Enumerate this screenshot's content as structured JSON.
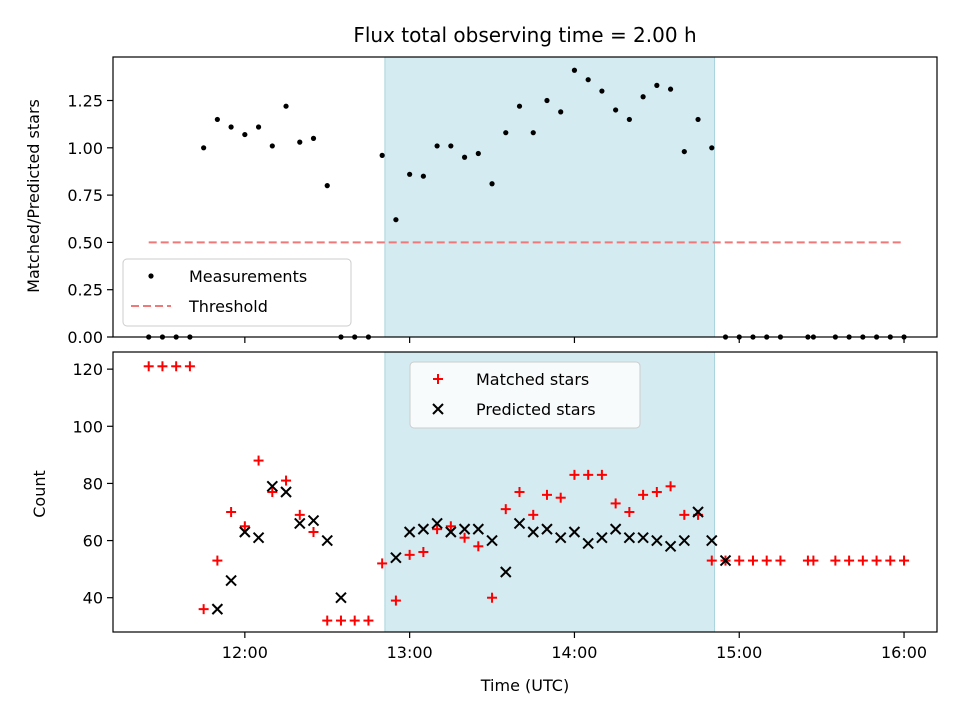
{
  "chart_data": [
    {
      "type": "scatter",
      "title": "Flux total observing time = 2.00 h",
      "xlabel": "",
      "ylabel": "Matched/Predicted stars",
      "xlim": [
        "11:12",
        "16:12"
      ],
      "ylim": [
        0,
        1.48
      ],
      "yticks": [
        0,
        0.25,
        0.5,
        0.75,
        1.0,
        1.25
      ],
      "ytick_labels": [
        "0.00",
        "0.25",
        "0.50",
        "0.75",
        "1.00",
        "1.25"
      ],
      "xtick_labels": [
        "12:00",
        "13:00",
        "14:00",
        "15:00",
        "16:00"
      ],
      "shaded_span": [
        "12:51",
        "14:51"
      ],
      "legend_position": "lower-left",
      "series": [
        {
          "name": "Measurements",
          "marker": "dot",
          "color": "#000000",
          "x": [
            "11:25",
            "11:30",
            "11:35",
            "11:40",
            "11:45",
            "11:50",
            "11:55",
            "12:00",
            "12:05",
            "12:10",
            "12:15",
            "12:20",
            "12:25",
            "12:30",
            "12:35",
            "12:40",
            "12:45",
            "12:50",
            "12:55",
            "13:00",
            "13:05",
            "13:10",
            "13:15",
            "13:20",
            "13:25",
            "13:30",
            "13:35",
            "13:40",
            "13:45",
            "13:50",
            "13:55",
            "14:00",
            "14:05",
            "14:10",
            "14:15",
            "14:20",
            "14:25",
            "14:30",
            "14:35",
            "14:40",
            "14:45",
            "14:50",
            "14:55",
            "15:00",
            "15:05",
            "15:10",
            "15:15",
            "15:25",
            "15:27",
            "15:35",
            "15:40",
            "15:45",
            "15:50",
            "15:55",
            "16:00"
          ],
          "y": [
            0,
            0,
            0,
            0,
            1.0,
            1.15,
            1.11,
            1.07,
            1.11,
            1.01,
            1.22,
            1.03,
            1.05,
            0.8,
            0,
            0,
            0,
            0.96,
            0.62,
            0.86,
            0.85,
            1.01,
            1.01,
            0.95,
            0.97,
            0.81,
            1.08,
            1.22,
            1.08,
            1.25,
            1.19,
            1.41,
            1.36,
            1.3,
            1.2,
            1.15,
            1.27,
            1.33,
            1.31,
            0.98,
            1.15,
            1.0,
            0,
            0,
            0,
            0,
            0,
            0,
            0,
            0,
            0,
            0,
            0,
            0,
            0
          ]
        },
        {
          "name": "Threshold",
          "marker": "dashed-line",
          "color": "#f07878",
          "x": [
            "11:25",
            "16:00"
          ],
          "y": [
            0.5,
            0.5
          ]
        }
      ]
    },
    {
      "type": "scatter",
      "title": "",
      "xlabel": "Time (UTC)",
      "ylabel": "Count",
      "xlim": [
        "11:12",
        "16:12"
      ],
      "ylim": [
        28,
        126
      ],
      "yticks": [
        40,
        60,
        80,
        100,
        120
      ],
      "ytick_labels": [
        "40",
        "60",
        "80",
        "100",
        "120"
      ],
      "xtick_labels": [
        "12:00",
        "13:00",
        "14:00",
        "15:00",
        "16:00"
      ],
      "shaded_span": [
        "12:51",
        "14:51"
      ],
      "legend_position": "upper-center",
      "series": [
        {
          "name": "Matched stars",
          "marker": "plus",
          "color": "#ff0000",
          "x": [
            "11:25",
            "11:30",
            "11:35",
            "11:40",
            "11:45",
            "11:50",
            "11:55",
            "12:00",
            "12:05",
            "12:10",
            "12:15",
            "12:20",
            "12:25",
            "12:30",
            "12:35",
            "12:40",
            "12:45",
            "12:50",
            "12:55",
            "13:00",
            "13:05",
            "13:10",
            "13:15",
            "13:20",
            "13:25",
            "13:30",
            "13:35",
            "13:40",
            "13:45",
            "13:50",
            "13:55",
            "14:00",
            "14:05",
            "14:10",
            "14:15",
            "14:20",
            "14:25",
            "14:30",
            "14:35",
            "14:40",
            "14:45",
            "14:50",
            "14:55",
            "15:00",
            "15:05",
            "15:10",
            "15:15",
            "15:25",
            "15:27",
            "15:35",
            "15:40",
            "15:45",
            "15:50",
            "15:55",
            "16:00"
          ],
          "y": [
            121,
            121,
            121,
            121,
            36,
            53,
            70,
            65,
            88,
            77,
            81,
            69,
            63,
            32,
            32,
            32,
            32,
            52,
            39,
            55,
            56,
            64,
            65,
            61,
            58,
            40,
            71,
            77,
            69,
            76,
            75,
            83,
            83,
            83,
            73,
            70,
            76,
            77,
            79,
            69,
            69,
            53,
            53,
            53,
            53,
            53,
            53,
            53,
            53,
            53,
            53,
            53,
            53,
            53,
            53
          ]
        },
        {
          "name": "Predicted stars",
          "marker": "x",
          "color": "#000000",
          "x": [
            "11:50",
            "11:55",
            "12:00",
            "12:05",
            "12:10",
            "12:15",
            "12:20",
            "12:25",
            "12:30",
            "12:35",
            "12:55",
            "13:00",
            "13:05",
            "13:10",
            "13:15",
            "13:20",
            "13:25",
            "13:30",
            "13:35",
            "13:40",
            "13:45",
            "13:50",
            "13:55",
            "14:00",
            "14:05",
            "14:10",
            "14:15",
            "14:20",
            "14:25",
            "14:30",
            "14:35",
            "14:40",
            "14:45",
            "14:50",
            "14:55"
          ],
          "y": [
            36,
            46,
            63,
            61,
            79,
            77,
            66,
            67,
            60,
            40,
            54,
            63,
            64,
            66,
            63,
            64,
            64,
            60,
            49,
            66,
            63,
            64,
            61,
            63,
            59,
            61,
            64,
            61,
            61,
            60,
            58,
            60,
            70,
            60,
            53
          ]
        }
      ]
    }
  ],
  "colors": {
    "shade": "#d4ebf1",
    "shade_edge": "#a9d3de",
    "axes": "#000000"
  }
}
